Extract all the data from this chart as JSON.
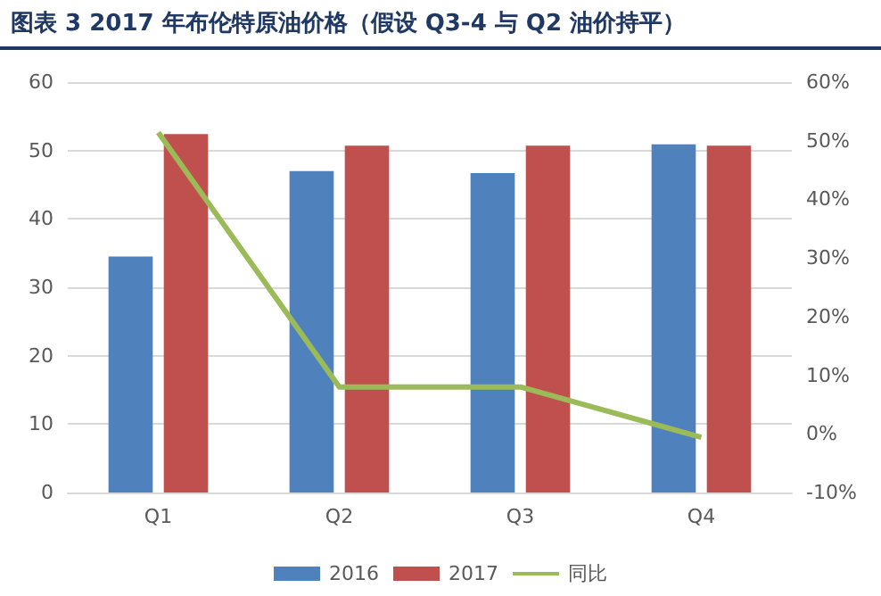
{
  "chart_data": {
    "type": "bar",
    "title": "图表 3   2017 年布伦特原油价格（假设 Q3-4 与 Q2 油价持平）",
    "categories": [
      "Q1",
      "Q2",
      "Q3",
      "Q4"
    ],
    "series": [
      {
        "name": "2016",
        "color": "#4f81bd",
        "values": [
          34.5,
          47.0,
          46.7,
          50.9
        ]
      },
      {
        "name": "2017",
        "color": "#c0504d",
        "values": [
          52.4,
          50.7,
          50.7,
          50.7
        ]
      },
      {
        "name": "同比",
        "type": "line",
        "axis": "y2",
        "color": "#9bbb59",
        "marker": "none",
        "values": [
          51.4,
          8.0,
          8.0,
          -0.6
        ]
      }
    ],
    "ylim": [
      0,
      60
    ],
    "yticks": [
      0,
      10,
      20,
      30,
      40,
      50,
      60
    ],
    "y2lim": [
      -10,
      60
    ],
    "y2ticks": [
      {
        "value": -10,
        "label": "-10%"
      },
      {
        "value": 0,
        "label": "0%"
      },
      {
        "value": 10,
        "label": "10%"
      },
      {
        "value": 20,
        "label": "20%"
      },
      {
        "value": 30,
        "label": "30%"
      },
      {
        "value": 40,
        "label": "40%"
      },
      {
        "value": 50,
        "label": "50%"
      },
      {
        "value": 60,
        "label": "60%"
      }
    ],
    "grid": "y",
    "legend": "bottom"
  }
}
